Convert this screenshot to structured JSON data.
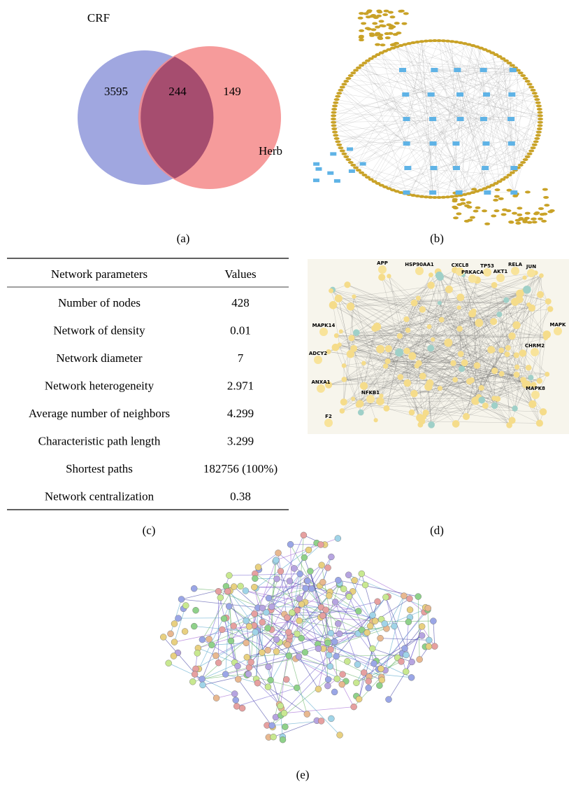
{
  "venn": {
    "left_label": "CRF",
    "right_label": "Herb",
    "left_only": "3595",
    "overlap": "244",
    "right_only": "149"
  },
  "panels": [
    "(a)",
    "(b)",
    "(c)",
    "(d)",
    "(e)"
  ],
  "table": {
    "header": [
      "Network parameters",
      "Values"
    ],
    "rows": [
      [
        "Number of nodes",
        "428"
      ],
      [
        "Network of density",
        "0.01"
      ],
      [
        "Network diameter",
        "7"
      ],
      [
        "Network heterogeneity",
        "2.971"
      ],
      [
        "Average number of neighbors",
        "4.299"
      ],
      [
        "Characteristic path length",
        "3.299"
      ],
      [
        "Shortest paths",
        "182756 (100%)"
      ],
      [
        "Network centralization",
        "0.38"
      ]
    ]
  },
  "network_d": {
    "nodes": [
      "APP",
      "JUN",
      "MAPK",
      "HSP90AA1",
      "CXCL8",
      "TP53",
      "RELA",
      "AKT1",
      "PRKACA",
      "MAPK14",
      "ADCY2",
      "ANXA1",
      "NFKB1",
      "F2",
      "CHRM2",
      "MAPK8"
    ]
  }
}
